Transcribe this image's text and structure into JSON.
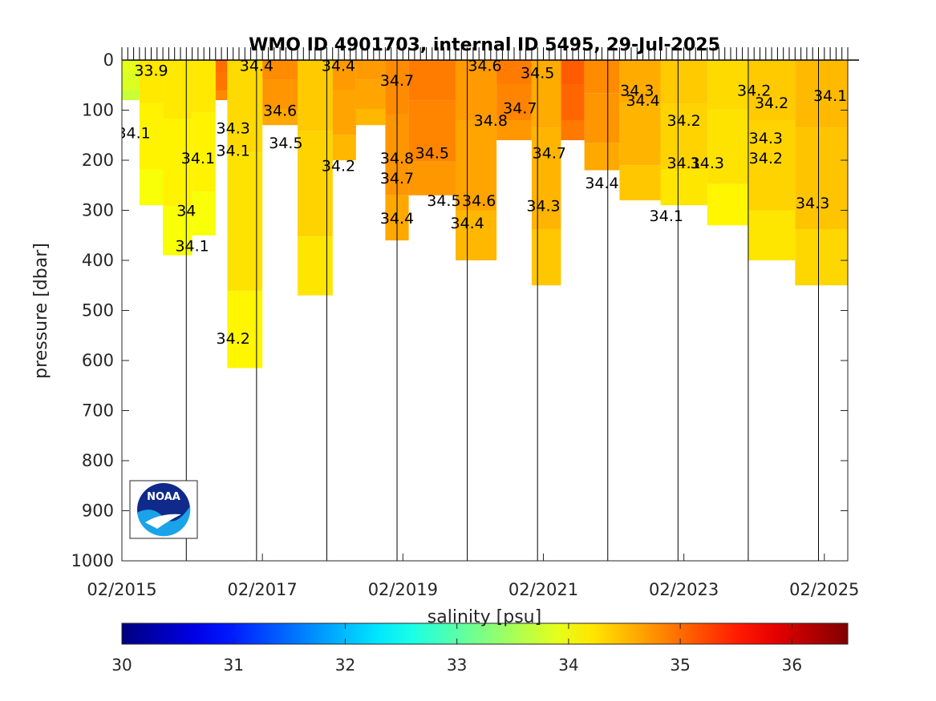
{
  "chart_data": {
    "type": "heatmap",
    "title": "WMO ID 4901703, internal ID 5495, 29-Jul-2025",
    "ylabel": "pressure [dbar]",
    "colorbar_label": "salinity [psu]",
    "x_range": [
      "2015-02",
      "2025-06"
    ],
    "y_range": [
      0,
      1000
    ],
    "y_reversed": true,
    "x_ticks": [
      "02/2015",
      "02/2017",
      "02/2019",
      "02/2021",
      "02/2023",
      "02/2025"
    ],
    "y_ticks": [
      0,
      100,
      200,
      300,
      400,
      500,
      600,
      700,
      800,
      900,
      1000
    ],
    "colorbar_range": [
      30,
      36.5
    ],
    "colorbar_ticks": [
      30,
      31,
      32,
      33,
      34,
      35,
      36
    ],
    "colormap": "jet",
    "year_separators": [
      "2016-01",
      "2017-01",
      "2018-01",
      "2019-01",
      "2020-01",
      "2021-01",
      "2022-01",
      "2023-01",
      "2024-01",
      "2025-01"
    ],
    "profiles": [
      {
        "date": "2015-02",
        "max_pressure": 80,
        "salinity": 33.8
      },
      {
        "date": "2015-05",
        "max_pressure": 290,
        "salinity": 34.1
      },
      {
        "date": "2015-09",
        "max_pressure": 390,
        "salinity": 34.1
      },
      {
        "date": "2016-02",
        "max_pressure": 350,
        "salinity": 34.1
      },
      {
        "date": "2016-06",
        "max_pressure": 80,
        "salinity": 34.9
      },
      {
        "date": "2016-08",
        "max_pressure": 615,
        "salinity": 34.2
      },
      {
        "date": "2017-02",
        "max_pressure": 130,
        "salinity": 34.7
      },
      {
        "date": "2017-08",
        "max_pressure": 470,
        "salinity": 34.3
      },
      {
        "date": "2018-02",
        "max_pressure": 200,
        "salinity": 34.6
      },
      {
        "date": "2018-06",
        "max_pressure": 130,
        "salinity": 34.6
      },
      {
        "date": "2018-11",
        "max_pressure": 360,
        "salinity": 34.7
      },
      {
        "date": "2019-03",
        "max_pressure": 270,
        "salinity": 34.8
      },
      {
        "date": "2019-11",
        "max_pressure": 400,
        "salinity": 34.6
      },
      {
        "date": "2020-06",
        "max_pressure": 160,
        "salinity": 34.8
      },
      {
        "date": "2020-12",
        "max_pressure": 450,
        "salinity": 34.5
      },
      {
        "date": "2021-05",
        "max_pressure": 160,
        "salinity": 35.0
      },
      {
        "date": "2021-09",
        "max_pressure": 220,
        "salinity": 34.7
      },
      {
        "date": "2022-03",
        "max_pressure": 280,
        "salinity": 34.5
      },
      {
        "date": "2022-10",
        "max_pressure": 290,
        "salinity": 34.3
      },
      {
        "date": "2023-06",
        "max_pressure": 330,
        "salinity": 34.2
      },
      {
        "date": "2024-01",
        "max_pressure": 400,
        "salinity": 34.3
      },
      {
        "date": "2024-09",
        "max_pressure": 450,
        "salinity": 34.4
      },
      {
        "date": "2025-06",
        "max_pressure": 410,
        "salinity": 34.3
      }
    ],
    "contour_labels": [
      {
        "text": "33.9",
        "date": "2015-07",
        "pressure": 20
      },
      {
        "text": "34.1",
        "date": "2015-04",
        "pressure": 145
      },
      {
        "text": "34",
        "date": "2016-01",
        "pressure": 300
      },
      {
        "text": "34.1",
        "date": "2016-02",
        "pressure": 370
      },
      {
        "text": "34.1",
        "date": "2016-03",
        "pressure": 195
      },
      {
        "text": "34.2",
        "date": "2016-09",
        "pressure": 555
      },
      {
        "text": "34.1",
        "date": "2016-09",
        "pressure": 180
      },
      {
        "text": "34.3",
        "date": "2016-09",
        "pressure": 135
      },
      {
        "text": "34.4",
        "date": "2017-01",
        "pressure": 10
      },
      {
        "text": "34.6",
        "date": "2017-05",
        "pressure": 100
      },
      {
        "text": "34.5",
        "date": "2017-06",
        "pressure": 165
      },
      {
        "text": "34.2",
        "date": "2018-03",
        "pressure": 210
      },
      {
        "text": "34.4",
        "date": "2018-03",
        "pressure": 10
      },
      {
        "text": "34.7",
        "date": "2019-01",
        "pressure": 40
      },
      {
        "text": "34.8",
        "date": "2019-01",
        "pressure": 195
      },
      {
        "text": "34.7",
        "date": "2019-01",
        "pressure": 235
      },
      {
        "text": "34.4",
        "date": "2019-01",
        "pressure": 315
      },
      {
        "text": "34.5",
        "date": "2019-07",
        "pressure": 185
      },
      {
        "text": "34.5",
        "date": "2019-09",
        "pressure": 280
      },
      {
        "text": "34.6",
        "date": "2020-03",
        "pressure": 280
      },
      {
        "text": "34.4",
        "date": "2020-01",
        "pressure": 325
      },
      {
        "text": "34.6",
        "date": "2020-04",
        "pressure": 10
      },
      {
        "text": "34.8",
        "date": "2020-05",
        "pressure": 120
      },
      {
        "text": "34.7",
        "date": "2020-10",
        "pressure": 95
      },
      {
        "text": "34.5",
        "date": "2021-01",
        "pressure": 25
      },
      {
        "text": "34.3",
        "date": "2021-02",
        "pressure": 290
      },
      {
        "text": "34.7",
        "date": "2021-03",
        "pressure": 185
      },
      {
        "text": "34.4",
        "date": "2021-12",
        "pressure": 245
      },
      {
        "text": "34.3",
        "date": "2022-06",
        "pressure": 60
      },
      {
        "text": "34.4",
        "date": "2022-07",
        "pressure": 80
      },
      {
        "text": "34.1",
        "date": "2022-11",
        "pressure": 310
      },
      {
        "text": "34.2",
        "date": "2023-02",
        "pressure": 120
      },
      {
        "text": "34.1",
        "date": "2023-02",
        "pressure": 205
      },
      {
        "text": "34.3",
        "date": "2023-06",
        "pressure": 205
      },
      {
        "text": "34.2",
        "date": "2024-02",
        "pressure": 60
      },
      {
        "text": "34.2",
        "date": "2024-05",
        "pressure": 85
      },
      {
        "text": "34.3",
        "date": "2024-04",
        "pressure": 155
      },
      {
        "text": "34.2",
        "date": "2024-04",
        "pressure": 195
      },
      {
        "text": "34.3",
        "date": "2024-12",
        "pressure": 285
      },
      {
        "text": "34.1",
        "date": "2025-03",
        "pressure": 70
      }
    ]
  },
  "logo": {
    "text": "NOAA"
  },
  "colors": {
    "axis": "#262626",
    "background": "#ffffff"
  }
}
